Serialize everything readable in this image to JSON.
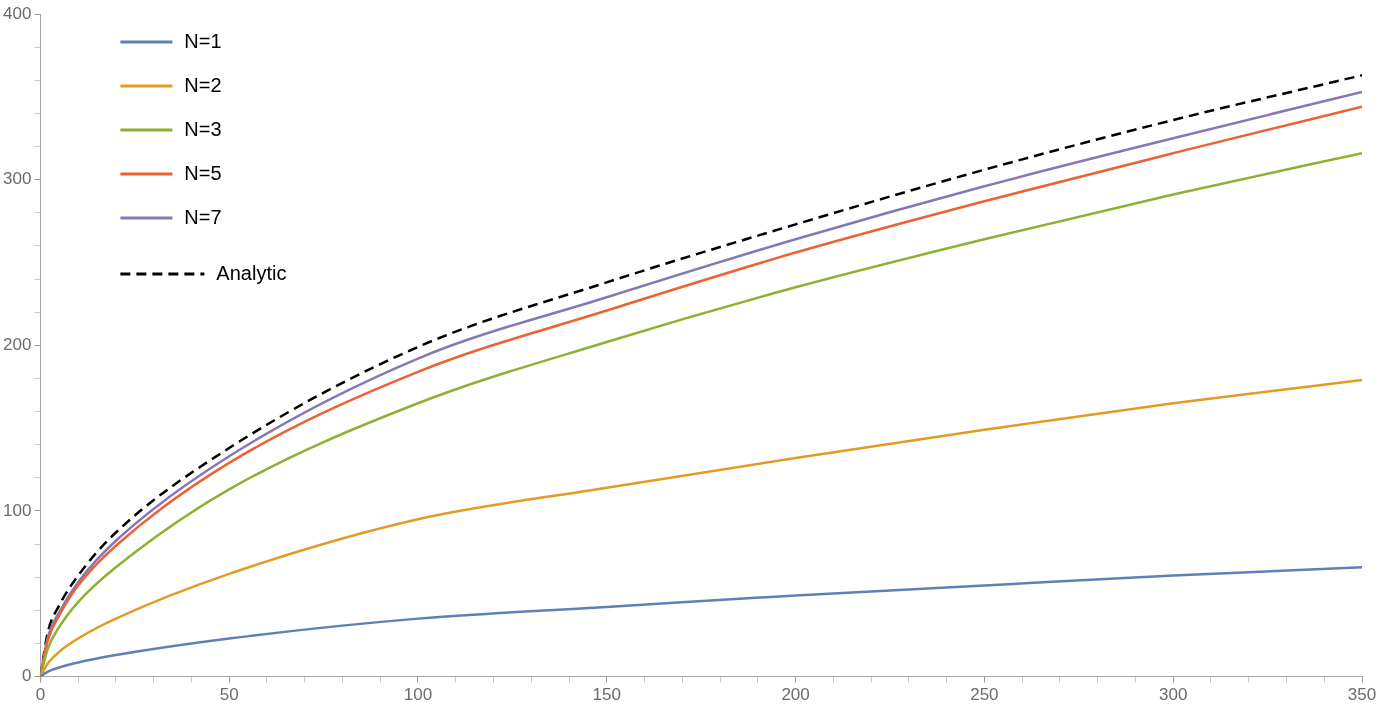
{
  "chart_data": {
    "type": "line",
    "x": [
      0,
      2,
      5,
      10,
      20,
      50,
      100,
      150,
      200,
      250,
      300,
      350
    ],
    "series": [
      {
        "name": "N=1",
        "color": "#5e81b5",
        "values": [
          0,
          3,
          5.5,
          8.5,
          13,
          23,
          35,
          42,
          49,
          55,
          61,
          66
        ]
      },
      {
        "name": "N=2",
        "color": "#e19c24",
        "values": [
          0,
          8,
          15,
          23,
          35,
          62,
          95,
          114,
          132,
          149,
          165,
          179
        ]
      },
      {
        "name": "N=3",
        "color": "#8fb032",
        "values": [
          0,
          17,
          30,
          45,
          66,
          113,
          165,
          202,
          235,
          264,
          291,
          316
        ]
      },
      {
        "name": "N=5",
        "color": "#eb6235",
        "values": [
          0,
          22,
          37,
          55,
          79,
          129,
          184,
          221,
          256,
          287,
          316,
          344
        ]
      },
      {
        "name": "N=7",
        "color": "#8778b3",
        "values": [
          0,
          24,
          39,
          57,
          82,
          133,
          192,
          229,
          264,
          296,
          325,
          353
        ]
      },
      {
        "name": "Analytic",
        "color": "#000000",
        "line_style": "dashed",
        "values": [
          0,
          27,
          43,
          61,
          87,
          138,
          199,
          238,
          273,
          306,
          336,
          363
        ]
      }
    ],
    "xlim": [
      0,
      350
    ],
    "xticks": [
      0,
      {
        "value": 10,
        "label": null
      },
      {
        "value": 20,
        "label": null
      },
      {
        "value": 30,
        "label": null
      },
      {
        "value": 40,
        "label": null
      },
      50,
      {
        "value": 60,
        "label": null
      },
      {
        "value": 70,
        "label": null
      },
      {
        "value": 80,
        "label": null
      },
      {
        "value": 90,
        "label": null
      },
      100,
      {
        "value": 110,
        "label": null
      },
      {
        "value": 120,
        "label": null
      },
      {
        "value": 130,
        "label": null
      },
      {
        "value": 140,
        "label": null
      },
      150,
      {
        "value": 160,
        "label": null
      },
      {
        "value": 170,
        "label": null
      },
      {
        "value": 180,
        "label": null
      },
      {
        "value": 190,
        "label": null
      },
      200,
      {
        "value": 210,
        "label": null
      },
      {
        "value": 220,
        "label": null
      },
      {
        "value": 230,
        "label": null
      },
      {
        "value": 240,
        "label": null
      },
      250,
      {
        "value": 260,
        "label": null
      },
      {
        "value": 270,
        "label": null
      },
      {
        "value": 280,
        "label": null
      },
      {
        "value": 290,
        "label": null
      },
      300,
      {
        "value": 310,
        "label": null
      },
      {
        "value": 320,
        "label": null
      },
      {
        "value": 330,
        "label": null
      },
      {
        "value": 340,
        "label": null
      },
      350
    ],
    "ylim": [
      0,
      400
    ],
    "yticks": [
      0,
      {
        "value": 20,
        "label": null
      },
      {
        "value": 40,
        "label": null
      },
      {
        "value": 60,
        "label": null
      },
      {
        "value": 80,
        "label": null
      },
      100,
      {
        "value": 120,
        "label": null
      },
      {
        "value": 140,
        "label": null
      },
      {
        "value": 160,
        "label": null
      },
      {
        "value": 180,
        "label": null
      },
      200,
      {
        "value": 220,
        "label": null
      },
      {
        "value": 240,
        "label": null
      },
      {
        "value": 260,
        "label": null
      },
      {
        "value": 280,
        "label": null
      },
      300,
      {
        "value": 320,
        "label": null
      },
      {
        "value": 340,
        "label": null
      },
      {
        "value": 360,
        "label": null
      },
      {
        "value": 380,
        "label": null
      },
      400
    ],
    "legend": "top left",
    "grid": false,
    "marker": "none",
    "line_style": "solid"
  }
}
